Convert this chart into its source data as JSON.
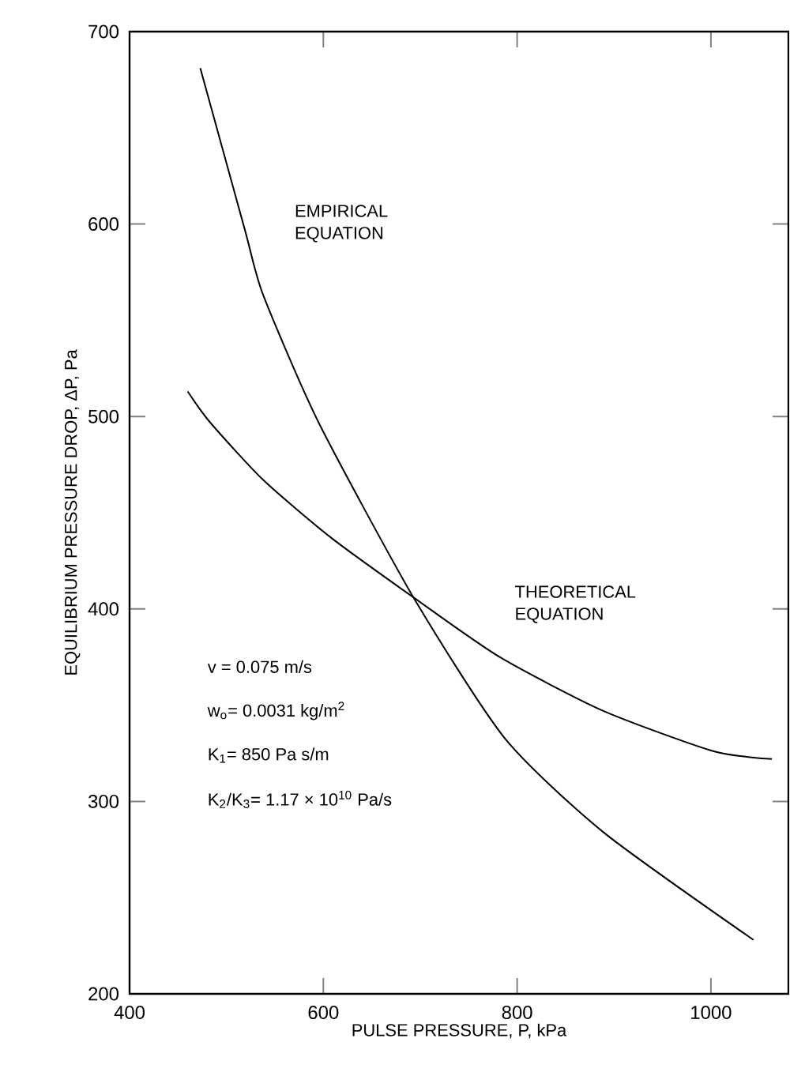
{
  "chart_data": {
    "type": "line",
    "xlabel": "PULSE   PRESSURE, P,    kPa",
    "ylabel": "EQUILIBRIUM   PRESSURE   DROP, ΔP,   Pa",
    "xlim": [
      400,
      1080
    ],
    "ylim": [
      200,
      700
    ],
    "xticks": [
      400,
      600,
      800,
      1000
    ],
    "yticks": [
      200,
      300,
      400,
      500,
      600,
      700
    ],
    "series": [
      {
        "name": "EMPIRICAL EQUATION",
        "color": "#000000",
        "x": [
          473,
          519,
          538,
          595,
          693,
          787,
          889,
          1044
        ],
        "values": [
          681,
          597,
          563,
          497,
          406,
          333,
          284,
          228
        ]
      },
      {
        "name": "THEORETICAL EQUATION",
        "color": "#000000",
        "x": [
          460,
          483,
          538,
          608,
          693,
          782,
          889,
          1003,
          1063
        ],
        "values": [
          513,
          497,
          467,
          437,
          406,
          375,
          347,
          326,
          322
        ]
      }
    ],
    "annotations": [
      "v = 0.075 m/s",
      "w$_{o}$= 0.0031 kg/m$^{2}$",
      "K$_{1}$= 850 Pa s/m",
      "K$_{2}$/K$_{3}$= 1.17 × 10$^{10}$ Pa/s"
    ],
    "marker": "none",
    "line_style": "solid"
  }
}
